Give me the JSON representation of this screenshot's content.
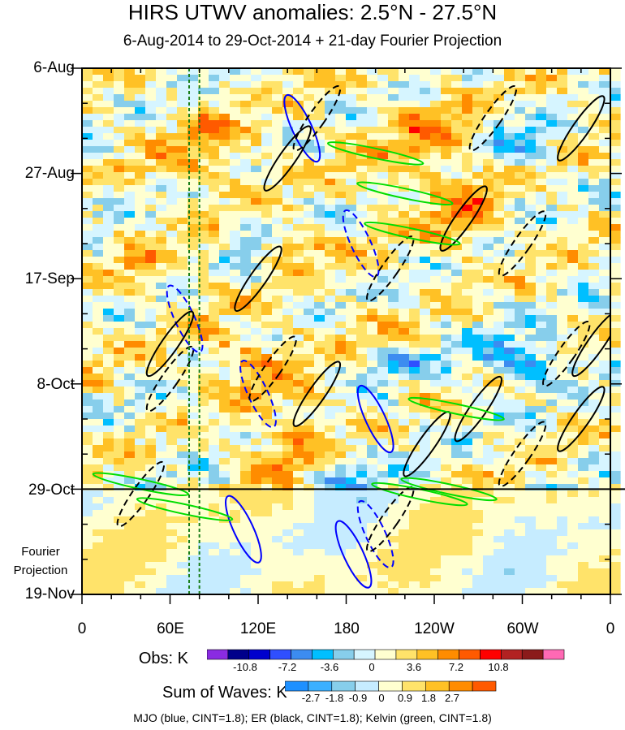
{
  "title": "HIRS UTWV anomalies: 2.5°N - 27.5°N",
  "subtitle": "6-Aug-2014 to 29-Oct-2014 + 21-day Fourier Projection",
  "chart_data": {
    "type": "heatmap",
    "title": "HIRS UTWV anomalies: 2.5°N - 27.5°N",
    "subtitle": "6-Aug-2014 to 29-Oct-2014 + 21-day Fourier Projection",
    "x_axis": {
      "ticks": [
        "0",
        "60E",
        "120E",
        "180",
        "120W",
        "60W",
        "0"
      ],
      "lon_range": [
        0,
        360
      ]
    },
    "y_axis": {
      "ticks": [
        "6-Aug",
        "27-Aug",
        "17-Sep",
        "8-Oct",
        "29-Oct",
        "19-Nov"
      ],
      "day_range": [
        0,
        105
      ],
      "observed_end": "29-Oct",
      "projection_label": [
        "Fourier",
        "Projection"
      ]
    },
    "vertical_lines_lon": [
      73,
      80
    ],
    "obs_colorbar": {
      "label": "Obs: K",
      "ticks": [
        "-10.8",
        "-7.2",
        "-3.6",
        "0",
        "3.6",
        "7.2",
        "10.8"
      ],
      "colors": [
        "#8a2be2",
        "#00008b",
        "#0000cd",
        "#2f4fff",
        "#3c8cf0",
        "#00bfff",
        "#87ceeb",
        "#d6f5ff",
        "#ffffd0",
        "#ffe36a",
        "#ffc125",
        "#ff8c00",
        "#ff5a00",
        "#ff0000",
        "#b22222",
        "#8b1a1a",
        "#ff69b4"
      ]
    },
    "sum_colorbar": {
      "label": "Sum of Waves: K",
      "ticks": [
        "-2.7",
        "-1.8",
        "-0.9",
        "0",
        "0.9",
        "1.8",
        "2.7"
      ],
      "colors": [
        "#1e90ff",
        "#3cb0ff",
        "#87ceeb",
        "#c6ecff",
        "#ffffd0",
        "#ffe36a",
        "#ffc125",
        "#ff8c00",
        "#ff5a00"
      ]
    },
    "contours": [
      {
        "name": "MJO",
        "color": "#0000ff",
        "cint": 1.8
      },
      {
        "name": "ER",
        "color": "#000000",
        "cint": 1.8
      },
      {
        "name": "Kelvin",
        "color": "#00dd00",
        "cint": 1.8
      }
    ],
    "features": [
      {
        "wave": "MJO",
        "lon": 150,
        "day": 12,
        "sign": 1
      },
      {
        "wave": "MJO",
        "lon": 190,
        "day": 35,
        "sign": -1
      },
      {
        "wave": "MJO",
        "lon": 70,
        "day": 50,
        "sign": -1
      },
      {
        "wave": "MJO",
        "lon": 120,
        "day": 65,
        "sign": -1
      },
      {
        "wave": "MJO",
        "lon": 200,
        "day": 70,
        "sign": 1
      },
      {
        "wave": "MJO",
        "lon": 110,
        "day": 92,
        "sign": 1
      },
      {
        "wave": "MJO",
        "lon": 200,
        "day": 93,
        "sign": -1
      },
      {
        "wave": "MJO",
        "lon": 185,
        "day": 97,
        "sign": 1
      },
      {
        "wave": "ER",
        "lon": 160,
        "day": 10,
        "sign": -1
      },
      {
        "wave": "ER",
        "lon": 140,
        "day": 18,
        "sign": 1
      },
      {
        "wave": "ER",
        "lon": 280,
        "day": 10,
        "sign": -1
      },
      {
        "wave": "ER",
        "lon": 340,
        "day": 12,
        "sign": 1
      },
      {
        "wave": "ER",
        "lon": 260,
        "day": 30,
        "sign": 1
      },
      {
        "wave": "ER",
        "lon": 300,
        "day": 35,
        "sign": -1
      },
      {
        "wave": "ER",
        "lon": 350,
        "day": 55,
        "sign": 1
      },
      {
        "wave": "ER",
        "lon": 330,
        "day": 57,
        "sign": -1
      },
      {
        "wave": "ER",
        "lon": 120,
        "day": 42,
        "sign": 1
      },
      {
        "wave": "ER",
        "lon": 60,
        "day": 55,
        "sign": 1
      },
      {
        "wave": "ER",
        "lon": 130,
        "day": 60,
        "sign": -1
      },
      {
        "wave": "ER",
        "lon": 160,
        "day": 65,
        "sign": 1
      },
      {
        "wave": "ER",
        "lon": 60,
        "day": 62,
        "sign": -1
      },
      {
        "wave": "ER",
        "lon": 210,
        "day": 40,
        "sign": -1
      },
      {
        "wave": "ER",
        "lon": 270,
        "day": 68,
        "sign": 1
      },
      {
        "wave": "ER",
        "lon": 235,
        "day": 75,
        "sign": 1
      },
      {
        "wave": "ER",
        "lon": 300,
        "day": 77,
        "sign": -1
      },
      {
        "wave": "ER",
        "lon": 340,
        "day": 70,
        "sign": 1
      },
      {
        "wave": "ER",
        "lon": 210,
        "day": 90,
        "sign": -1
      },
      {
        "wave": "ER",
        "lon": 40,
        "day": 85,
        "sign": -1
      },
      {
        "wave": "Kelvin",
        "lon": 200,
        "day": 17,
        "sign": 1
      },
      {
        "wave": "Kelvin",
        "lon": 220,
        "day": 25,
        "sign": 1
      },
      {
        "wave": "Kelvin",
        "lon": 225,
        "day": 33,
        "sign": 1
      },
      {
        "wave": "Kelvin",
        "lon": 255,
        "day": 68,
        "sign": 1
      },
      {
        "wave": "Kelvin",
        "lon": 250,
        "day": 84,
        "sign": 1
      },
      {
        "wave": "Kelvin",
        "lon": 70,
        "day": 88,
        "sign": 1
      },
      {
        "wave": "Kelvin",
        "lon": 230,
        "day": 85,
        "sign": 1
      },
      {
        "wave": "Kelvin",
        "lon": 40,
        "day": 83,
        "sign": 1
      }
    ]
  },
  "footer": "MJO (blue, CINT=1.8); ER (black, CINT=1.8); Kelvin (green, CINT=1.8)"
}
